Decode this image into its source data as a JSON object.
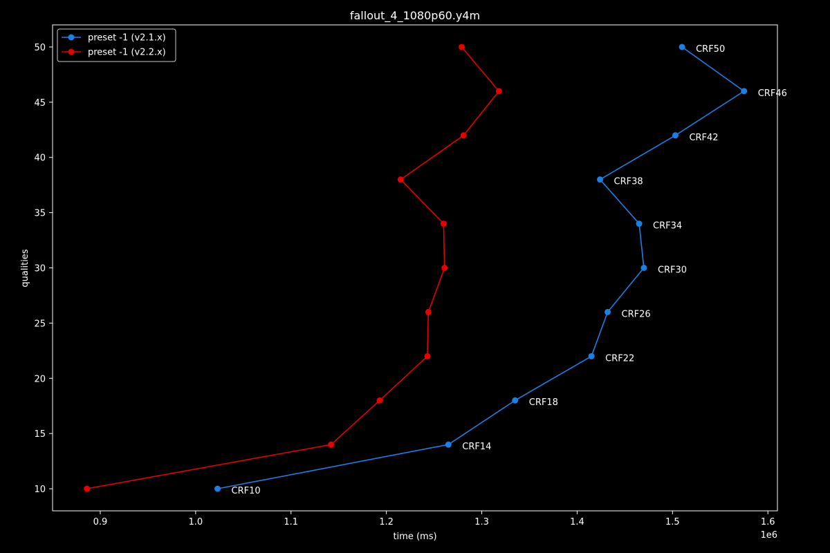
{
  "chart_data": {
    "type": "line",
    "title": "fallout_4_1080p60.y4m",
    "xlabel": "time (ms)",
    "ylabel": "qualities",
    "x_offset_label": "1e6",
    "xlim": [
      0.85,
      1.61
    ],
    "ylim": [
      8,
      52
    ],
    "x_ticks": [
      0.9,
      1.0,
      1.1,
      1.2,
      1.3,
      1.4,
      1.5,
      1.6
    ],
    "x_tick_labels": [
      "0.9",
      "1.0",
      "1.1",
      "1.2",
      "1.3",
      "1.4",
      "1.5",
      "1.6"
    ],
    "y_ticks": [
      10,
      15,
      20,
      25,
      30,
      35,
      40,
      45,
      50
    ],
    "y_tick_labels": [
      "10",
      "15",
      "20",
      "25",
      "30",
      "35",
      "40",
      "45",
      "50"
    ],
    "grid": false,
    "legend_position": "top-left",
    "series": [
      {
        "name": "preset -1 (v2.1.x)",
        "color": "#1a80e6",
        "points": [
          {
            "x": 1.023,
            "y": 10,
            "label": "CRF10"
          },
          {
            "x": 1.265,
            "y": 14,
            "label": "CRF14"
          },
          {
            "x": 1.335,
            "y": 18,
            "label": "CRF18"
          },
          {
            "x": 1.415,
            "y": 22,
            "label": "CRF22"
          },
          {
            "x": 1.432,
            "y": 26,
            "label": "CRF26"
          },
          {
            "x": 1.47,
            "y": 30,
            "label": "CRF30"
          },
          {
            "x": 1.465,
            "y": 34,
            "label": "CRF34"
          },
          {
            "x": 1.424,
            "y": 38,
            "label": "CRF38"
          },
          {
            "x": 1.503,
            "y": 42,
            "label": "CRF42"
          },
          {
            "x": 1.575,
            "y": 46,
            "label": "CRF46"
          },
          {
            "x": 1.51,
            "y": 50,
            "label": "CRF50"
          }
        ]
      },
      {
        "name": "preset -1 (v2.2.x)",
        "color": "#e60000",
        "points": [
          {
            "x": 0.886,
            "y": 10
          },
          {
            "x": 1.142,
            "y": 14
          },
          {
            "x": 1.193,
            "y": 18
          },
          {
            "x": 1.243,
            "y": 22
          },
          {
            "x": 1.244,
            "y": 26
          },
          {
            "x": 1.261,
            "y": 30
          },
          {
            "x": 1.26,
            "y": 34
          },
          {
            "x": 1.215,
            "y": 38
          },
          {
            "x": 1.281,
            "y": 42
          },
          {
            "x": 1.318,
            "y": 46
          },
          {
            "x": 1.279,
            "y": 50
          }
        ]
      }
    ]
  }
}
